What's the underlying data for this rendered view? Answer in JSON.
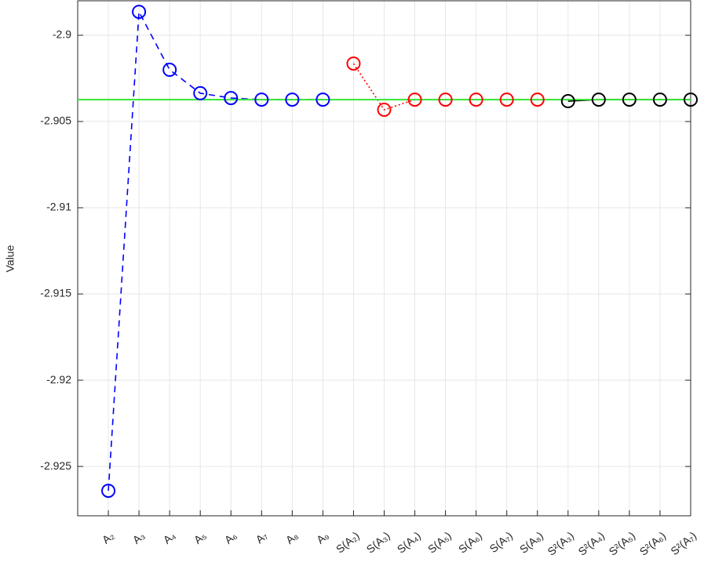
{
  "chart_data": {
    "type": "line",
    "ylabel": "Value",
    "categories": [
      "A₂",
      "A₃",
      "A₄",
      "A₅",
      "A₆",
      "A₇",
      "A₈",
      "A₉",
      "S(A₂)",
      "S(A₃)",
      "S(A₄)",
      "S(A₅)",
      "S(A₆)",
      "S(A₇)",
      "S(A₈)",
      "S²(A₃)",
      "S²(A₄)",
      "S²(A₅)",
      "S²(A₆)",
      "S²(A₇)"
    ],
    "series": [
      {
        "color": "#0000ff",
        "dash": "8,6",
        "values": [
          -2.92641,
          -2.89864,
          -2.902,
          -2.90336,
          -2.90364,
          -2.90373,
          -2.90373,
          -2.90373,
          null,
          null,
          null,
          null,
          null,
          null,
          null,
          null,
          null,
          null,
          null,
          null
        ]
      },
      {
        "color": "#ff0000",
        "dash": "2,3",
        "values": [
          null,
          null,
          null,
          null,
          null,
          null,
          null,
          null,
          -2.90164,
          -2.90432,
          -2.90373,
          -2.90373,
          -2.90373,
          -2.90373,
          -2.90373,
          null,
          null,
          null,
          null,
          null
        ]
      },
      {
        "color": "#000000",
        "dash": "none",
        "values": [
          null,
          null,
          null,
          null,
          null,
          null,
          null,
          null,
          null,
          null,
          null,
          null,
          null,
          null,
          null,
          -2.90382,
          -2.90373,
          -2.90373,
          -2.90373,
          -2.90373
        ]
      }
    ],
    "reference_value": -2.90373,
    "reference_color": "#33e633",
    "ylim": [
      -2.92786,
      -2.898
    ],
    "yticks": [
      -2.925,
      -2.92,
      -2.915,
      -2.91,
      -2.905,
      -2.9
    ],
    "grid": true
  }
}
